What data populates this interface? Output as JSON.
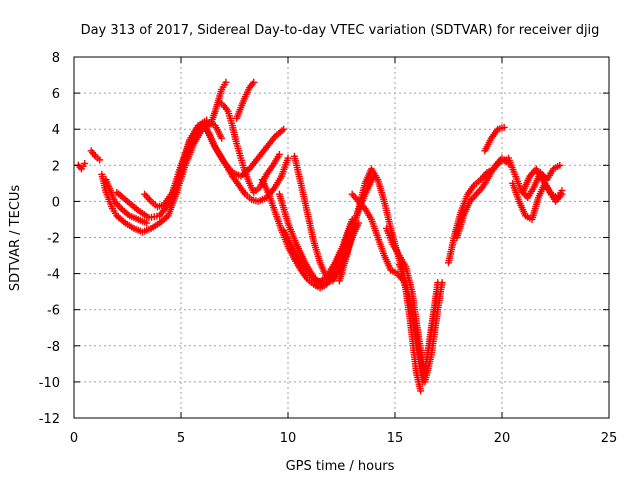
{
  "chart_data": {
    "type": "scatter",
    "title": "Day 313 of 2017, Sidereal Day-to-day VTEC variation (SDTVAR) for receiver djig",
    "xlabel": "GPS time / hours",
    "ylabel": "SDTVAR / TECUs",
    "xlim": [
      0,
      25
    ],
    "ylim": [
      -12,
      8
    ],
    "xticks": [
      0,
      5,
      10,
      15,
      20,
      25
    ],
    "yticks": [
      -12,
      -10,
      -8,
      -6,
      -4,
      -2,
      0,
      2,
      4,
      6,
      8
    ],
    "grid": true,
    "marker": "plus",
    "color": "#ff0000",
    "series": [
      {
        "x": [
          0.2,
          0.35,
          0.5
        ],
        "y": [
          2.0,
          1.8,
          2.1
        ]
      },
      {
        "x": [
          0.8,
          1.0,
          1.2
        ],
        "y": [
          2.8,
          2.5,
          2.3
        ]
      },
      {
        "x": [
          1.5,
          1.7,
          1.9,
          2.2,
          2.6,
          3.0,
          3.4
        ],
        "y": [
          1.2,
          0.6,
          0.0,
          -0.4,
          -0.8,
          -1.0,
          -1.2
        ]
      },
      {
        "x": [
          1.3,
          1.5,
          1.8,
          2.0,
          2.4,
          2.8,
          3.2,
          3.6,
          4.0,
          4.4,
          4.8,
          5.2,
          5.6,
          6.0,
          6.4,
          6.6,
          6.9,
          7.1
        ],
        "y": [
          1.5,
          0.5,
          -0.4,
          -0.8,
          -1.2,
          -1.5,
          -1.7,
          -1.5,
          -1.2,
          -0.8,
          0.5,
          2.0,
          3.2,
          4.0,
          4.3,
          5.0,
          6.2,
          6.6
        ]
      },
      {
        "x": [
          2.0,
          2.5,
          3.0,
          3.5,
          4.0,
          4.5,
          5.0,
          5.4,
          5.8,
          6.2,
          6.6,
          6.9
        ],
        "y": [
          0.5,
          0.0,
          -0.5,
          -0.9,
          -0.8,
          0.0,
          1.5,
          3.0,
          4.0,
          4.4,
          4.2,
          3.5
        ]
      },
      {
        "x": [
          3.3,
          3.6,
          3.9,
          4.2,
          4.6,
          5.0,
          5.4,
          5.8,
          6.2
        ],
        "y": [
          0.4,
          0.0,
          -0.3,
          -0.2,
          0.5,
          2.0,
          3.3,
          4.2,
          4.5
        ]
      },
      {
        "x": [
          4.5,
          4.8,
          5.1,
          5.4,
          5.7,
          6.0,
          6.3,
          6.6,
          7.0,
          7.4,
          7.8,
          8.2,
          8.6,
          9.0,
          9.4,
          9.8
        ],
        "y": [
          0.0,
          1.0,
          2.2,
          3.4,
          4.0,
          4.2,
          3.8,
          3.0,
          2.2,
          1.6,
          1.4,
          1.8,
          2.4,
          3.0,
          3.6,
          4.0
        ]
      },
      {
        "x": [
          6.2,
          6.5,
          6.8,
          7.1,
          7.4,
          7.7,
          8.0,
          8.3,
          8.6,
          9.0,
          9.4,
          9.7,
          10.0
        ],
        "y": [
          4.0,
          3.2,
          2.6,
          2.0,
          1.4,
          0.9,
          0.4,
          0.1,
          0.0,
          0.2,
          0.8,
          1.4,
          2.4
        ]
      },
      {
        "x": [
          6.8,
          7.0,
          7.2,
          7.4,
          7.6,
          7.8,
          8.0,
          8.2,
          8.4,
          8.7,
          9.0,
          9.3,
          9.6
        ],
        "y": [
          5.5,
          5.3,
          5.0,
          4.2,
          3.2,
          2.4,
          1.6,
          1.0,
          0.5,
          0.8,
          1.5,
          2.0,
          2.6
        ]
      },
      {
        "x": [
          7.6,
          7.8,
          8.0,
          8.2,
          8.4
        ],
        "y": [
          4.6,
          5.2,
          5.8,
          6.3,
          6.6
        ]
      },
      {
        "x": [
          8.8,
          9.1,
          9.4,
          9.7,
          10.0,
          10.3,
          10.6,
          10.9,
          11.2,
          11.5,
          11.8,
          12.1,
          12.4,
          12.7,
          13.0
        ],
        "y": [
          1.2,
          0.4,
          -0.6,
          -1.6,
          -2.5,
          -3.2,
          -3.8,
          -4.3,
          -4.6,
          -4.8,
          -4.6,
          -4.0,
          -3.0,
          -2.0,
          -1.0
        ]
      },
      {
        "x": [
          9.6,
          10.0,
          10.4,
          10.8,
          11.2,
          11.6,
          12.0,
          12.4,
          12.8,
          13.2,
          13.6,
          14.0
        ],
        "y": [
          0.4,
          -1.2,
          -2.4,
          -3.4,
          -4.2,
          -4.6,
          -4.4,
          -3.6,
          -2.2,
          -0.8,
          0.4,
          1.4
        ]
      },
      {
        "x": [
          9.8,
          10.2,
          10.6,
          11.0,
          11.4,
          11.8,
          12.2,
          12.6,
          13.0
        ],
        "y": [
          -1.6,
          -2.6,
          -3.4,
          -4.0,
          -4.5,
          -4.2,
          -3.4,
          -2.4,
          -1.2
        ]
      },
      {
        "x": [
          10.3,
          10.6,
          10.9,
          11.2,
          11.5,
          11.8,
          12.1,
          12.4,
          12.7,
          13.0,
          13.3
        ],
        "y": [
          2.5,
          1.0,
          -0.6,
          -2.2,
          -3.4,
          -4.2,
          -4.4,
          -3.8,
          -3.0,
          -2.0,
          -1.2
        ]
      },
      {
        "x": [
          12.4,
          12.7,
          13.0,
          13.3,
          13.6,
          13.9,
          14.2,
          14.5,
          14.8,
          15.1,
          15.4,
          15.7,
          16.0,
          16.2
        ],
        "y": [
          -4.4,
          -3.2,
          -1.8,
          -0.4,
          1.0,
          1.8,
          1.2,
          0.0,
          -1.5,
          -2.8,
          -4.0,
          -6.5,
          -9.5,
          -10.5
        ]
      },
      {
        "x": [
          13.0,
          13.3,
          13.6,
          13.9,
          14.2,
          14.5,
          14.8,
          15.1,
          15.4,
          15.7,
          16.0,
          16.3,
          16.6,
          17.0
        ],
        "y": [
          0.4,
          0.0,
          -0.4,
          -1.0,
          -2.0,
          -3.0,
          -3.8,
          -4.0,
          -4.4,
          -5.6,
          -8.0,
          -10.0,
          -8.0,
          -5.0
        ]
      },
      {
        "x": [
          14.6,
          14.9,
          15.2,
          15.5,
          15.8,
          16.1,
          16.4,
          16.7,
          17.0
        ],
        "y": [
          -1.5,
          -2.4,
          -3.0,
          -3.6,
          -5.0,
          -7.5,
          -9.5,
          -7.0,
          -4.5
        ]
      },
      {
        "x": [
          15.2,
          15.5,
          15.8,
          16.1,
          16.4,
          16.7,
          17.0,
          17.2
        ],
        "y": [
          -3.5,
          -4.5,
          -6.0,
          -8.0,
          -10.0,
          -8.5,
          -6.0,
          -4.5
        ]
      },
      {
        "x": [
          17.5,
          17.8,
          18.1,
          18.4,
          18.7,
          19.0,
          19.3,
          19.6,
          19.9,
          20.2
        ],
        "y": [
          -3.4,
          -1.8,
          -0.5,
          0.4,
          0.9,
          1.2,
          1.6,
          1.8,
          2.2,
          2.3
        ]
      },
      {
        "x": [
          17.9,
          18.2,
          18.5,
          18.8,
          19.1,
          19.4,
          19.7,
          20.0,
          20.3
        ],
        "y": [
          -2.0,
          -0.8,
          0.0,
          0.4,
          0.8,
          1.4,
          2.0,
          2.4,
          2.1
        ]
      },
      {
        "x": [
          19.2,
          19.5,
          19.8,
          20.1
        ],
        "y": [
          2.8,
          3.5,
          4.0,
          4.1
        ]
      },
      {
        "x": [
          20.3,
          20.6,
          20.9,
          21.2,
          21.5,
          21.8,
          22.1,
          22.4,
          22.7
        ],
        "y": [
          2.4,
          1.5,
          0.6,
          0.2,
          0.8,
          1.6,
          1.2,
          1.8,
          2.0
        ]
      },
      {
        "x": [
          20.5,
          20.8,
          21.1,
          21.4,
          21.7,
          22.0,
          22.3,
          22.6,
          22.8
        ],
        "y": [
          1.0,
          0.0,
          -0.8,
          -1.0,
          0.2,
          1.0,
          0.4,
          0.2,
          0.6
        ]
      },
      {
        "x": [
          21.0,
          21.3,
          21.6,
          21.9,
          22.2,
          22.5,
          22.8
        ],
        "y": [
          0.6,
          1.4,
          1.8,
          1.2,
          0.6,
          0.0,
          0.4
        ]
      }
    ]
  }
}
